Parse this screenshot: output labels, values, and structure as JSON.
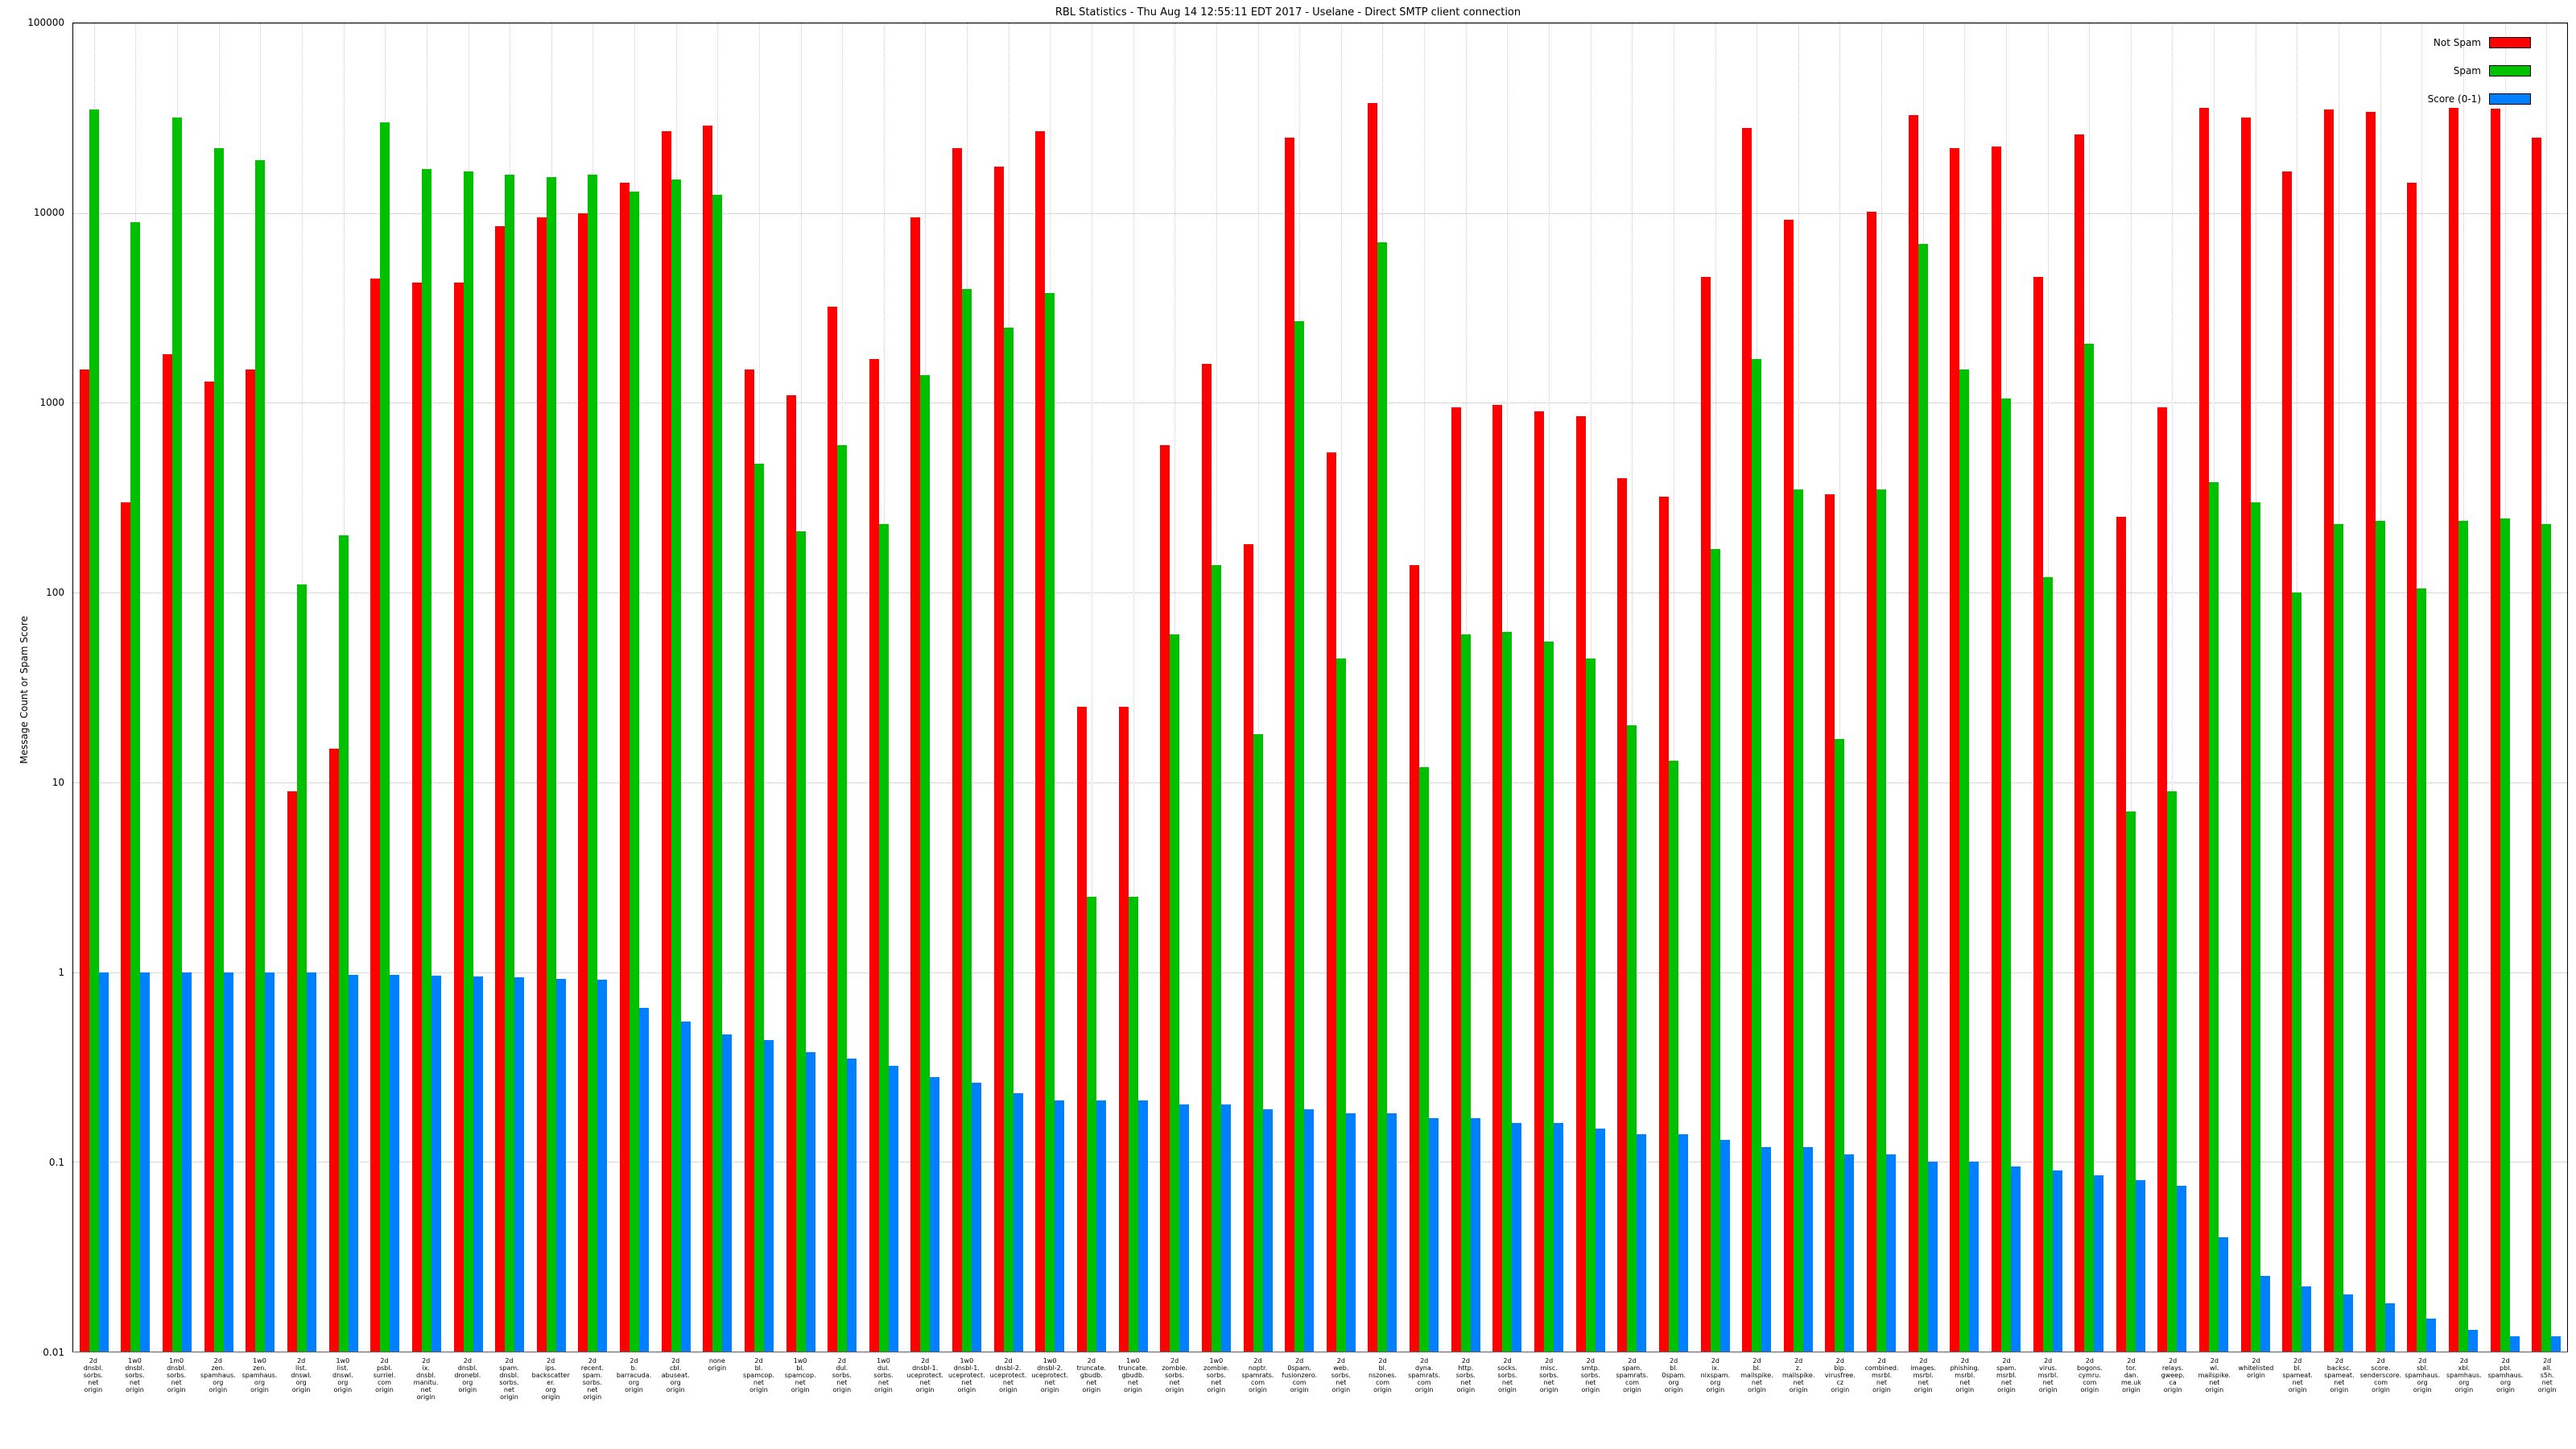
{
  "title": "RBL Statistics - Thu Aug 14 12:55:11 EDT 2017 - Uselane - Direct SMTP client connection",
  "chart_data": {
    "type": "bar",
    "scale": "log",
    "title": "RBL Statistics - Thu Aug 14 12:55:11 EDT 2017 - Uselane - Direct SMTP client connection",
    "ylabel": "Message Count or Spam Score",
    "xlabel": "",
    "ylim": [
      0.01,
      100000
    ],
    "yticks": [
      "100000",
      "10000",
      "1000",
      "100",
      "10",
      "1",
      "0.1",
      "0.01"
    ],
    "grid": true,
    "legend_position": "top-right",
    "categories": [
      "2d\ndnsbl.\nsorbs.\nnet\norigin",
      "1w0\ndnsbl.\nsorbs.\nnet\norigin",
      "1m0\ndnsbl.\nsorbs.\nnet\norigin",
      "2d\nzen.\nspamhaus.\norg\norigin",
      "1w0\nzen.\nspamhaus.\norg\norigin",
      "2d\nlist.\ndnswl.\norg\norigin",
      "1w0\nlist.\ndnswl.\norg\norigin",
      "2d\npsbl.\nsurriel.\ncom\norigin",
      "2d\nix.\ndnsbl.\nmanitu.\nnet\norigin",
      "2d\ndnsbl.\ndronebl.\norg\norigin",
      "2d\nspam.\ndnsbl.\nsorbs.\nnet\norigin",
      "2d\nips.\nbackscatterer.\norg\norigin",
      "2d\nrecent.\nspam.\nsorbs.\nnet\norigin",
      "2d\nb.\nbarracuda.\norg\norigin",
      "2d\ncbl.\nabuseat.\norg\norigin",
      "none\norigin",
      "2d\nbl.\nspamcop.\nnet\norigin",
      "1w0\nbl.\nspamcop.\nnet\norigin",
      "2d\ndul.\nsorbs.\nnet\norigin",
      "1w0\ndul.\nsorbs.\nnet\norigin",
      "2d\ndnsbl-1.\nuceprotect.\nnet\norigin",
      "1w0\ndnsbl-1.\nuceprotect.\nnet\norigin",
      "2d\ndnsbl-2.\nuceprotect.\nnet\norigin",
      "1w0\ndnsbl-2.\nuceprotect.\nnet\norigin",
      "2d\ntruncate.\ngbudb.\nnet\norigin",
      "1w0\ntruncate.\ngbudb.\nnet\norigin",
      "2d\nzombie.\nsorbs.\nnet\norigin",
      "1w0\nzombie.\nsorbs.\nnet\norigin",
      "2d\nnoptr.\nspamrats.\ncom\norigin",
      "2d\n0spam.\nfusionzero.\ncom\norigin",
      "2d\nweb.\nsorbs.\nnet\norigin",
      "2d\nbl.\nnszones.\ncom\norigin",
      "2d\ndyna.\nspamrats.\ncom\norigin",
      "2d\nhttp.\nsorbs.\nnet\norigin",
      "2d\nsocks.\nsorbs.\nnet\norigin",
      "2d\nmisc.\nsorbs.\nnet\norigin",
      "2d\nsmtp.\nsorbs.\nnet\norigin",
      "2d\nspam.\nspamrats.\ncom\norigin",
      "2d\nbl.\n0spam.\norg\norigin",
      "2d\nix.\nnixspam.\norg\norigin",
      "2d\nbl.\nmailspike.\nnet\norigin",
      "2d\nz.\nmailspike.\nnet\norigin",
      "2d\nbip.\nvirusfree.\ncz\norigin",
      "2d\ncombined.\nmsrbl.\nnet\norigin",
      "2d\nimages.\nmsrbl.\nnet\norigin",
      "2d\nphishing.\nmsrbl.\nnet\norigin",
      "2d\nspam.\nmsrbl.\nnet\norigin",
      "2d\nvirus.\nmsrbl.\nnet\norigin",
      "2d\nbogons.\ncymru.\ncom\norigin",
      "2d\ntor.\ndan.\nme.uk\norigin",
      "2d\nrelays.\ngweep.\nca\norigin",
      "2d\nwl.\nmailspike.\nnet\norigin",
      "2d\nwhitelisted\norigin",
      "2d\nbl.\nspameat.\nnet\norigin",
      "2d\nbacksc.\nspameat.\nnet\norigin",
      "2d\nscore.\nsenderscore.\ncom\norigin",
      "2d\nsbl.\nspamhaus.\norg\norigin",
      "2d\nxbl.\nspamhaus.\norg\norigin",
      "2d\npbl.\nspamhaus.\norg\norigin",
      "2d\nall.\ns5h.\nnet\norigin"
    ],
    "series": [
      {
        "name": "Not Spam",
        "color": "#ff0000",
        "values": [
          1500,
          300,
          1800,
          1300,
          1500,
          9,
          15,
          4500,
          4300,
          4300,
          8500,
          9500,
          10000,
          14500,
          27000,
          29000,
          1500,
          1100,
          3200,
          1700,
          9500,
          22000,
          17500,
          27000,
          25,
          25,
          600,
          1600,
          180,
          25000,
          550,
          38000,
          140,
          950,
          980,
          900,
          850,
          400,
          320,
          4600,
          28000,
          9200,
          330,
          10200,
          33000,
          22000,
          22500,
          4600,
          26000,
          250,
          950,
          36000,
          32000,
          16500,
          35000,
          34000,
          14500,
          36000,
          35500,
          25000
        ]
      },
      {
        "name": "Spam",
        "color": "#00c000",
        "values": [
          35000,
          9000,
          32000,
          22000,
          19000,
          110,
          200,
          30000,
          17000,
          16500,
          16000,
          15500,
          16000,
          13000,
          15000,
          12500,
          480,
          210,
          600,
          230,
          1400,
          4000,
          2500,
          3800,
          2.5,
          2.5,
          60,
          140,
          18,
          2700,
          45,
          7000,
          12,
          60,
          62,
          55,
          45,
          20,
          13,
          170,
          1700,
          350,
          17,
          350,
          6900,
          1500,
          1050,
          120,
          2050,
          7,
          9,
          380,
          300,
          100,
          230,
          240,
          105,
          240,
          245,
          230
        ]
      },
      {
        "name": "Score (0-1)",
        "color": "#0080ff",
        "values": [
          1.0,
          1.0,
          1.0,
          1.0,
          1.0,
          1.0,
          0.97,
          0.97,
          0.96,
          0.95,
          0.94,
          0.92,
          0.91,
          0.65,
          0.55,
          0.47,
          0.44,
          0.38,
          0.35,
          0.32,
          0.28,
          0.26,
          0.23,
          0.21,
          0.21,
          0.21,
          0.2,
          0.2,
          0.19,
          0.19,
          0.18,
          0.18,
          0.17,
          0.17,
          0.16,
          0.16,
          0.15,
          0.14,
          0.14,
          0.13,
          0.12,
          0.12,
          0.11,
          0.11,
          0.1,
          0.1,
          0.095,
          0.09,
          0.085,
          0.08,
          0.075,
          0.04,
          0.025,
          0.022,
          0.02,
          0.018,
          0.015,
          0.013,
          0.012,
          0.012
        ]
      }
    ]
  }
}
